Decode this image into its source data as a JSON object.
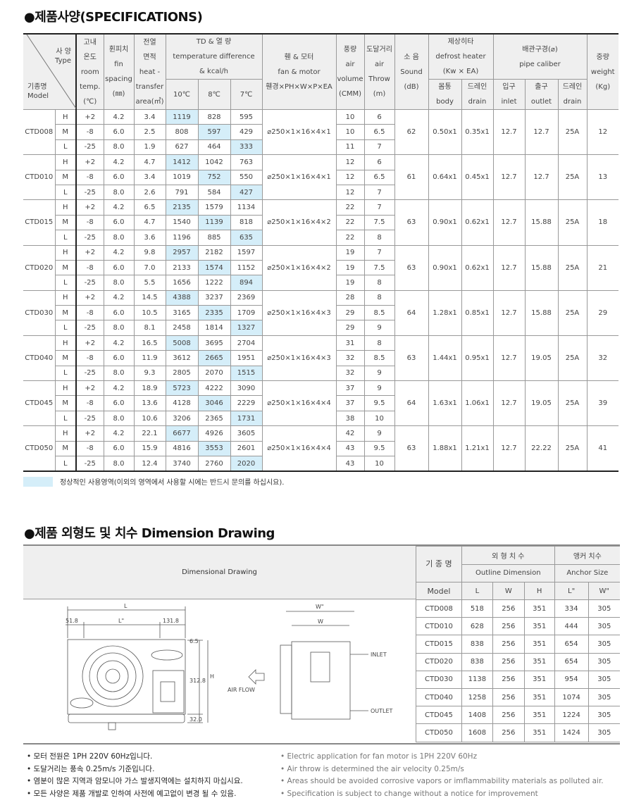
{
  "spec": {
    "title": "●제품사양(SPECIFICATIONS)",
    "header": {
      "type_ko": "사 양",
      "type_en": "Type",
      "model_ko": "기종명",
      "model_en": "Model",
      "room": [
        "고내",
        "온도",
        "room",
        "temp.",
        "(℃)"
      ],
      "fin": [
        "휜피치",
        "fin",
        "spacing",
        "(㎜)"
      ],
      "area": [
        "전열",
        "면적",
        "heat -",
        "transfer",
        "area(㎡)"
      ],
      "td": [
        "TD & 열 량",
        "temperature difference",
        "& kcal/h"
      ],
      "td_cols": [
        "10℃",
        "8℃",
        "7℃"
      ],
      "fan": [
        "휀 & 모터",
        "fan & motor",
        "휀경×PH×W×P×EA"
      ],
      "airvol": [
        "풍량",
        "air",
        "volume",
        "(CMM)"
      ],
      "throw": [
        "도달거리",
        "air",
        "Throw",
        "(m)"
      ],
      "sound": [
        "소 음",
        "Sound",
        "(dB)"
      ],
      "defrost": [
        "제상히타",
        "defrost heater",
        "(Kw × EA)"
      ],
      "defrost_cols": [
        [
          "몸통",
          "body"
        ],
        [
          "드레인",
          "drain"
        ]
      ],
      "pipe": [
        "배관구경(⌀)",
        "pipe caliber"
      ],
      "pipe_cols": [
        [
          "입구",
          "inlet"
        ],
        [
          "출구",
          "outlet"
        ],
        [
          "드레인",
          "drain"
        ]
      ],
      "weight": [
        "중량",
        "weight",
        "(Kg)"
      ]
    },
    "levels": [
      "H",
      "M",
      "L"
    ],
    "room_temps": [
      "+2",
      "-8",
      "-25"
    ],
    "fin_spacing": [
      "4.2",
      "6.0",
      "8.0"
    ],
    "models": [
      {
        "name": "CTD008",
        "area": [
          "3.4",
          "2.5",
          "1.9"
        ],
        "td": [
          [
            "1119",
            "828",
            "595"
          ],
          [
            "808",
            "597",
            "429"
          ],
          [
            "627",
            "464",
            "333"
          ]
        ],
        "fan": "⌀250×1×16×4×1",
        "airvol": [
          "10",
          "10",
          "11"
        ],
        "throw": [
          "6",
          "6.5",
          "7"
        ],
        "sound": "62",
        "body": "0.50x1",
        "drain": "0.35x1",
        "inlet": "12.7",
        "outlet": "12.7",
        "pdrain": "25A",
        "weight": "12"
      },
      {
        "name": "CTD010",
        "area": [
          "4.7",
          "3.4",
          "2.6"
        ],
        "td": [
          [
            "1412",
            "1042",
            "763"
          ],
          [
            "1019",
            "752",
            "550"
          ],
          [
            "791",
            "584",
            "427"
          ]
        ],
        "fan": "⌀250×1×16×4×1",
        "airvol": [
          "12",
          "12",
          "12"
        ],
        "throw": [
          "6",
          "6.5",
          "7"
        ],
        "sound": "61",
        "body": "0.64x1",
        "drain": "0.45x1",
        "inlet": "12.7",
        "outlet": "12.7",
        "pdrain": "25A",
        "weight": "13"
      },
      {
        "name": "CTD015",
        "area": [
          "6.5",
          "4.7",
          "3.6"
        ],
        "td": [
          [
            "2135",
            "1579",
            "1134"
          ],
          [
            "1540",
            "1139",
            "818"
          ],
          [
            "1196",
            "885",
            "635"
          ]
        ],
        "fan": "⌀250×1×16×4×2",
        "airvol": [
          "22",
          "22",
          "22"
        ],
        "throw": [
          "7",
          "7.5",
          "8"
        ],
        "sound": "63",
        "body": "0.90x1",
        "drain": "0.62x1",
        "inlet": "12.7",
        "outlet": "15.88",
        "pdrain": "25A",
        "weight": "18"
      },
      {
        "name": "CTD020",
        "area": [
          "9.8",
          "7.0",
          "5.5"
        ],
        "td": [
          [
            "2957",
            "2182",
            "1597"
          ],
          [
            "2133",
            "1574",
            "1152"
          ],
          [
            "1656",
            "1222",
            "894"
          ]
        ],
        "fan": "⌀250×1×16×4×2",
        "airvol": [
          "19",
          "19",
          "19"
        ],
        "throw": [
          "7",
          "7.5",
          "8"
        ],
        "sound": "63",
        "body": "0.90x1",
        "drain": "0.62x1",
        "inlet": "12.7",
        "outlet": "15.88",
        "pdrain": "25A",
        "weight": "21"
      },
      {
        "name": "CTD030",
        "area": [
          "14.5",
          "10.5",
          "8.1"
        ],
        "td": [
          [
            "4388",
            "3237",
            "2369"
          ],
          [
            "3165",
            "2335",
            "1709"
          ],
          [
            "2458",
            "1814",
            "1327"
          ]
        ],
        "fan": "⌀250×1×16×4×3",
        "airvol": [
          "28",
          "29",
          "29"
        ],
        "throw": [
          "8",
          "8.5",
          "9"
        ],
        "sound": "64",
        "body": "1.28x1",
        "drain": "0.85x1",
        "inlet": "12.7",
        "outlet": "15.88",
        "pdrain": "25A",
        "weight": "29"
      },
      {
        "name": "CTD040",
        "area": [
          "16.5",
          "11.9",
          "9.3"
        ],
        "td": [
          [
            "5008",
            "3695",
            "2704"
          ],
          [
            "3612",
            "2665",
            "1951"
          ],
          [
            "2805",
            "2070",
            "1515"
          ]
        ],
        "fan": "⌀250×1×16×4×3",
        "airvol": [
          "31",
          "32",
          "32"
        ],
        "throw": [
          "8",
          "8.5",
          "9"
        ],
        "sound": "63",
        "body": "1.44x1",
        "drain": "0.95x1",
        "inlet": "12.7",
        "outlet": "19.05",
        "pdrain": "25A",
        "weight": "32"
      },
      {
        "name": "CTD045",
        "area": [
          "18.9",
          "13.6",
          "10.6"
        ],
        "td": [
          [
            "5723",
            "4222",
            "3090"
          ],
          [
            "4128",
            "3046",
            "2229"
          ],
          [
            "3206",
            "2365",
            "1731"
          ]
        ],
        "fan": "⌀250×1×16×4×4",
        "airvol": [
          "37",
          "37",
          "38"
        ],
        "throw": [
          "9",
          "9.5",
          "10"
        ],
        "sound": "64",
        "body": "1.63x1",
        "drain": "1.06x1",
        "inlet": "12.7",
        "outlet": "19.05",
        "pdrain": "25A",
        "weight": "39"
      },
      {
        "name": "CTD050",
        "area": [
          "22.1",
          "15.9",
          "12.4"
        ],
        "td": [
          [
            "6677",
            "4926",
            "3605"
          ],
          [
            "4816",
            "3553",
            "2601"
          ],
          [
            "3740",
            "2760",
            "2020"
          ]
        ],
        "fan": "⌀250×1×16×4×4",
        "airvol": [
          "42",
          "43",
          "43"
        ],
        "throw": [
          "9",
          "9.5",
          "10"
        ],
        "sound": "63",
        "body": "1.88x1",
        "drain": "1.21x1",
        "inlet": "12.7",
        "outlet": "22.22",
        "pdrain": "25A",
        "weight": "41"
      }
    ],
    "highlight_color": "#d5eef9",
    "legend": "정상적인 사용영역(이외의 영역에서 사용할 시에는 반드시 문의를 하십시요)."
  },
  "dimension": {
    "title": "●제품 외형도 및 치수 Dimension Drawing",
    "drawing_label": "Dimensional Drawing",
    "drawing": {
      "L": "L",
      "Lstar": "L\"",
      "d1": "51.8",
      "d2": "131.8",
      "d3": "6.5",
      "d4": "312.8",
      "d5": "32.0",
      "H": "H",
      "Wstar": "W\"",
      "W": "W",
      "airflow": "AIR FLOW",
      "inlet": "INLET",
      "outlet": "OUTLET"
    },
    "header": {
      "model_ko": "기 종 명",
      "model_en": "Model",
      "outline_ko": "외 형 치 수",
      "outline_en": "Outline Dimension",
      "anchor_ko": "앵커 치수",
      "anchor_en": "Anchor Size",
      "cols": [
        "L",
        "W",
        "H",
        "L\"",
        "W\""
      ]
    },
    "rows": [
      [
        "CTD008",
        "518",
        "256",
        "351",
        "334",
        "305"
      ],
      [
        "CTD010",
        "628",
        "256",
        "351",
        "444",
        "305"
      ],
      [
        "CTD015",
        "838",
        "256",
        "351",
        "654",
        "305"
      ],
      [
        "CTD020",
        "838",
        "256",
        "351",
        "654",
        "305"
      ],
      [
        "CTD030",
        "1138",
        "256",
        "351",
        "954",
        "305"
      ],
      [
        "CTD040",
        "1258",
        "256",
        "351",
        "1074",
        "305"
      ],
      [
        "CTD045",
        "1408",
        "256",
        "351",
        "1224",
        "305"
      ],
      [
        "CTD050",
        "1608",
        "256",
        "351",
        "1424",
        "305"
      ]
    ]
  },
  "notes": {
    "ko": [
      "• 모터 전원은 1PH 220V 60Hz입니다.",
      "• 도달거리는 풍속 0.25m/s 기준입니다.",
      "• 염분이 많은 지역과 암모니아 가스 발생지역에는 설치하지 마십시요.",
      "• 모든 사양은 제품 개발로 인하여 사전에 예고없이 변경 될 수 있음."
    ],
    "en": [
      "• Electric application for fan motor is 1PH 220V 60Hz",
      "• Air throw is determined the air velocity 0.25m/s",
      "• Areas should be avoided corrosive vapors or imflammability materials as polluted air.",
      "• Specification is subject to change without a notice for improvement"
    ]
  }
}
